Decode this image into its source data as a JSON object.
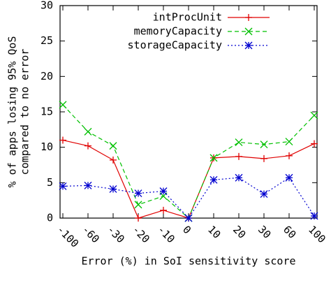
{
  "chart_data": {
    "type": "line",
    "x_label": "Error (%) in SoI sensitivity score",
    "y_label": [
      "% of apps losing 95% QoS",
      "compared to no error"
    ],
    "categories": [
      "-100",
      "-60",
      "-30",
      "-20",
      "-10",
      "0",
      "10",
      "20",
      "30",
      "60",
      "100"
    ],
    "series": [
      {
        "name": "intProcUnit",
        "color": "#e00000",
        "marker": "plus",
        "dash": "solid",
        "values": [
          11,
          10.2,
          8.2,
          0,
          1.1,
          0,
          8.5,
          8.7,
          8.4,
          8.8,
          10.5
        ]
      },
      {
        "name": "memoryCapacity",
        "color": "#00c000",
        "marker": "cross",
        "dash": "dashed",
        "values": [
          16,
          12.2,
          10.2,
          1.9,
          3.1,
          0,
          8.5,
          10.7,
          10.4,
          10.8,
          14.5
        ]
      },
      {
        "name": "storageCapacity",
        "color": "#0000d0",
        "marker": "star",
        "dash": "dotted",
        "values": [
          4.5,
          4.6,
          4.1,
          3.5,
          3.8,
          0,
          5.4,
          5.7,
          3.4,
          5.7,
          0.3
        ]
      }
    ],
    "ylim": [
      0,
      30
    ],
    "yticks": [
      0,
      5,
      10,
      15,
      20,
      25,
      30
    ],
    "legend": "top-right"
  }
}
